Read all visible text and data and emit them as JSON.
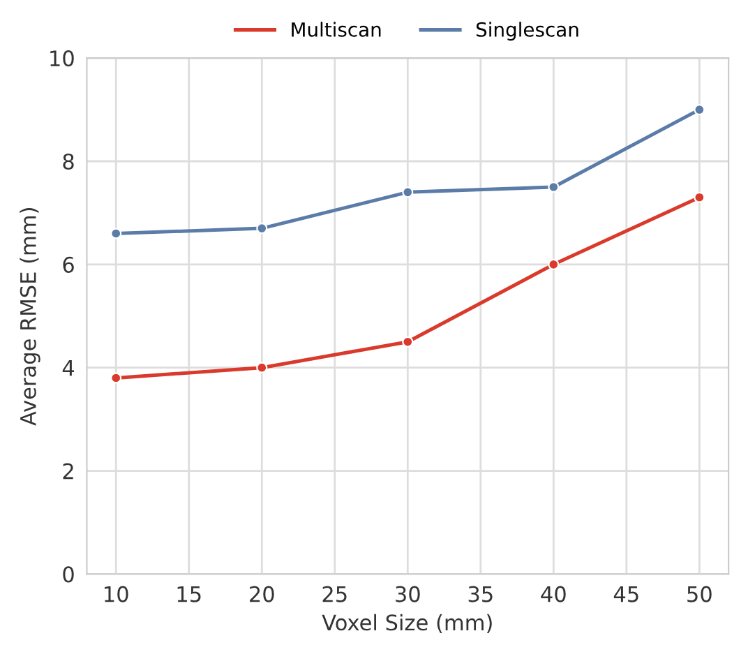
{
  "chart_data": {
    "type": "line",
    "xlabel": "Voxel Size (mm)",
    "ylabel": "Average RMSE (mm)",
    "x": [
      10,
      20,
      30,
      40,
      50
    ],
    "series": [
      {
        "name": "Multiscan",
        "color": "#d93a2b",
        "values": [
          3.8,
          4.0,
          4.5,
          6.0,
          7.3
        ]
      },
      {
        "name": "Singlescan",
        "color": "#5b7ba8",
        "values": [
          6.6,
          6.7,
          7.4,
          7.5,
          9.0
        ]
      }
    ],
    "xlim": [
      8,
      52
    ],
    "ylim": [
      0,
      10
    ],
    "xticks": [
      10,
      15,
      20,
      25,
      30,
      35,
      40,
      45,
      50
    ],
    "yticks": [
      0,
      2,
      4,
      6,
      8,
      10
    ],
    "grid": true,
    "legend": "top",
    "marker": "circle",
    "line_style": "solid"
  }
}
